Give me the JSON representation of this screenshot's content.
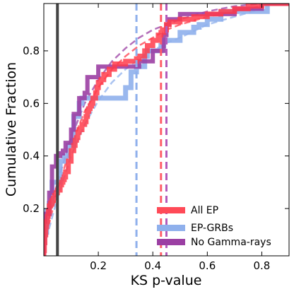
{
  "chart_data": {
    "type": "line",
    "title": "",
    "xlabel": "KS p-value",
    "ylabel": "Cumulative Fraction",
    "xlim": [
      0.0,
      0.9
    ],
    "ylim": [
      0.02,
      0.98
    ],
    "xticks": [
      0.2,
      0.4,
      0.6,
      0.8
    ],
    "xtick_labels": [
      "0.2",
      "0.4",
      "0.6",
      "0.8"
    ],
    "yticks": [
      0.2,
      0.4,
      0.6,
      0.8
    ],
    "ytick_labels": [
      "0.2",
      "0.4",
      "0.6",
      "0.8"
    ],
    "grid": false,
    "legend_position": "lower-right",
    "series": [
      {
        "name": "All EP",
        "color": "#ff3b4a",
        "style": "step",
        "x": [
          0.0,
          0.002,
          0.004,
          0.007,
          0.01,
          0.013,
          0.016,
          0.02,
          0.025,
          0.03,
          0.035,
          0.04,
          0.045,
          0.05,
          0.06,
          0.065,
          0.07,
          0.075,
          0.08,
          0.09,
          0.1,
          0.11,
          0.115,
          0.12,
          0.125,
          0.13,
          0.14,
          0.15,
          0.155,
          0.16,
          0.165,
          0.17,
          0.175,
          0.18,
          0.19,
          0.195,
          0.2,
          0.21,
          0.22,
          0.24,
          0.26,
          0.28,
          0.3,
          0.32,
          0.34,
          0.35,
          0.37,
          0.38,
          0.4,
          0.42,
          0.43,
          0.44,
          0.45,
          0.46,
          0.5,
          0.55,
          0.6,
          0.65,
          0.7,
          0.75,
          0.8
        ],
        "y": [
          0.04,
          0.07,
          0.1,
          0.13,
          0.15,
          0.17,
          0.19,
          0.21,
          0.22,
          0.23,
          0.24,
          0.25,
          0.26,
          0.27,
          0.29,
          0.3,
          0.31,
          0.32,
          0.34,
          0.38,
          0.42,
          0.44,
          0.46,
          0.47,
          0.49,
          0.5,
          0.52,
          0.53,
          0.55,
          0.57,
          0.58,
          0.59,
          0.6,
          0.62,
          0.64,
          0.66,
          0.68,
          0.69,
          0.71,
          0.73,
          0.75,
          0.75,
          0.76,
          0.76,
          0.77,
          0.78,
          0.8,
          0.82,
          0.84,
          0.86,
          0.87,
          0.88,
          0.9,
          0.91,
          0.92,
          0.93,
          0.94,
          0.95,
          0.96,
          0.97,
          0.98
        ]
      },
      {
        "name": "EP-GRBs",
        "color": "#8fb0ec",
        "style": "step",
        "x": [
          0.0,
          0.004,
          0.01,
          0.02,
          0.03,
          0.06,
          0.075,
          0.09,
          0.11,
          0.13,
          0.14,
          0.16,
          0.17,
          0.2,
          0.3,
          0.32,
          0.34,
          0.37,
          0.38,
          0.43,
          0.44,
          0.5,
          0.55,
          0.57,
          0.6,
          0.65,
          0.8,
          0.82
        ],
        "y": [
          0.07,
          0.11,
          0.19,
          0.22,
          0.3,
          0.38,
          0.4,
          0.44,
          0.55,
          0.6,
          0.62,
          0.62,
          0.62,
          0.62,
          0.66,
          0.72,
          0.74,
          0.78,
          0.8,
          0.82,
          0.84,
          0.87,
          0.89,
          0.9,
          0.92,
          0.95,
          0.95,
          0.98
        ]
      },
      {
        "name": "No Gamma-rays",
        "color": "#9b3fa3",
        "style": "step",
        "x": [
          0.0,
          0.005,
          0.02,
          0.03,
          0.045,
          0.06,
          0.07,
          0.08,
          0.1,
          0.11,
          0.13,
          0.15,
          0.16,
          0.2,
          0.28,
          0.35,
          0.4,
          0.44,
          0.45,
          0.46,
          0.5,
          0.7,
          0.8
        ],
        "y": [
          0.15,
          0.18,
          0.26,
          0.36,
          0.4,
          0.41,
          0.42,
          0.45,
          0.5,
          0.56,
          0.62,
          0.64,
          0.7,
          0.74,
          0.74,
          0.76,
          0.8,
          0.86,
          0.9,
          0.92,
          0.94,
          0.96,
          0.98
        ]
      }
    ],
    "fit_curves": [
      {
        "name": "All EP fit",
        "color": "#ff3b4a",
        "x": [
          0.0,
          0.05,
          0.1,
          0.15,
          0.2,
          0.25,
          0.3,
          0.35,
          0.4,
          0.45,
          0.5,
          0.6,
          0.7,
          0.8
        ],
        "y": [
          0.06,
          0.27,
          0.44,
          0.57,
          0.66,
          0.73,
          0.78,
          0.82,
          0.85,
          0.88,
          0.9,
          0.93,
          0.95,
          0.97
        ]
      },
      {
        "name": "EP-GRBs fit",
        "color": "#8fb0ec",
        "x": [
          0.0,
          0.05,
          0.1,
          0.15,
          0.2,
          0.25,
          0.3,
          0.35,
          0.4,
          0.45,
          0.5,
          0.6,
          0.7,
          0.8
        ],
        "y": [
          0.05,
          0.24,
          0.4,
          0.52,
          0.61,
          0.68,
          0.73,
          0.77,
          0.8,
          0.83,
          0.85,
          0.9,
          0.93,
          0.96
        ]
      },
      {
        "name": "No Gamma-rays fit",
        "color": "#9b3fa3",
        "x": [
          0.0,
          0.05,
          0.1,
          0.15,
          0.2,
          0.25,
          0.3,
          0.35,
          0.4,
          0.45,
          0.5,
          0.6,
          0.7,
          0.8
        ],
        "y": [
          0.08,
          0.3,
          0.47,
          0.6,
          0.69,
          0.76,
          0.81,
          0.85,
          0.88,
          0.9,
          0.92,
          0.95,
          0.97,
          0.98
        ]
      }
    ],
    "vertical_lines": [
      {
        "name": "threshold",
        "x": 0.05,
        "color": "#444444",
        "style": "solid"
      },
      {
        "name": "EP-GRBs median",
        "x": 0.34,
        "color": "#8fb0ec",
        "style": "dashed"
      },
      {
        "name": "All EP median",
        "x": 0.43,
        "color": "#ff5d68",
        "style": "dashed"
      },
      {
        "name": "No Gamma-rays median",
        "x": 0.45,
        "color": "#b45bbb",
        "style": "dashed"
      }
    ]
  }
}
